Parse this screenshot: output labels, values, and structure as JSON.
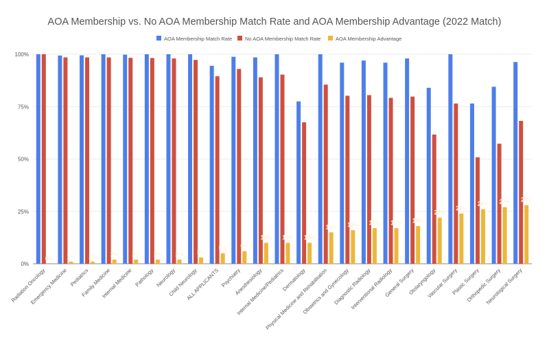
{
  "chart_data": {
    "type": "bar",
    "title": "AOA Membership vs. No AOA Membership Match Rate and AOA Membership Advantage (2022 Match)",
    "categories": [
      "Radiation Oncology",
      "Emergency Medicine",
      "Pediatrics",
      "Family Medicine",
      "Internal Medicine",
      "Pathology",
      "Neurology",
      "Child Neurology",
      "ALL APPLICANTS",
      "Psychiatry",
      "Anesthesiology",
      "Internal Medicine/Pediatrics",
      "Dermatology",
      "Physical Medicine and Rehabilitation",
      "Obstetrics and Gynecology",
      "Diagnostic Radiology",
      "Interventional Radiology",
      "General Surgery",
      "Otolaryngology",
      "Vascular Surgery",
      "Plastic Surgery",
      "Orthopedic Surgery",
      "Neurological Surgery"
    ],
    "series": [
      {
        "name": "AOA Membership Match Rate",
        "color": "#4e7fe8",
        "values": [
          100,
          99.4,
          99.5,
          100,
          99.8,
          100,
          100,
          100,
          94.5,
          98.8,
          98.5,
          100,
          77.5,
          100,
          96,
          97,
          96,
          98,
          84,
          100,
          76.5,
          84.5,
          96.3
        ]
      },
      {
        "name": "No AOA Membership Match Rate",
        "color": "#cf4f3f",
        "values": [
          100,
          98.5,
          98.5,
          98.5,
          98.3,
          98.2,
          98,
          97.3,
          89.5,
          93,
          89,
          90.3,
          67.5,
          85.5,
          80.2,
          80.5,
          79.2,
          79.8,
          61.7,
          76.5,
          50.8,
          57.3,
          68.2
        ]
      },
      {
        "name": "AOA Membership Advantage",
        "color": "#ecb73a",
        "values": [
          0,
          1,
          1,
          2,
          2,
          2,
          2,
          3,
          5,
          6,
          10,
          10,
          10,
          15,
          16,
          17,
          17,
          18,
          22,
          24,
          26,
          27,
          28
        ],
        "data_labels": [
          "0%",
          "1%",
          "1%",
          "2%",
          "2%",
          "2%",
          "2%",
          "3%",
          "5%",
          "6%",
          "10%",
          "10%",
          "10%",
          "15%",
          "16%",
          "17%",
          "17%",
          "18%",
          "22%",
          "24%",
          "26%",
          "27%",
          "28%"
        ]
      }
    ],
    "yticks": [
      "0%",
      "25%",
      "50%",
      "75%",
      "100%"
    ],
    "ylim": [
      0,
      100
    ],
    "grid": true,
    "legend": "top"
  }
}
